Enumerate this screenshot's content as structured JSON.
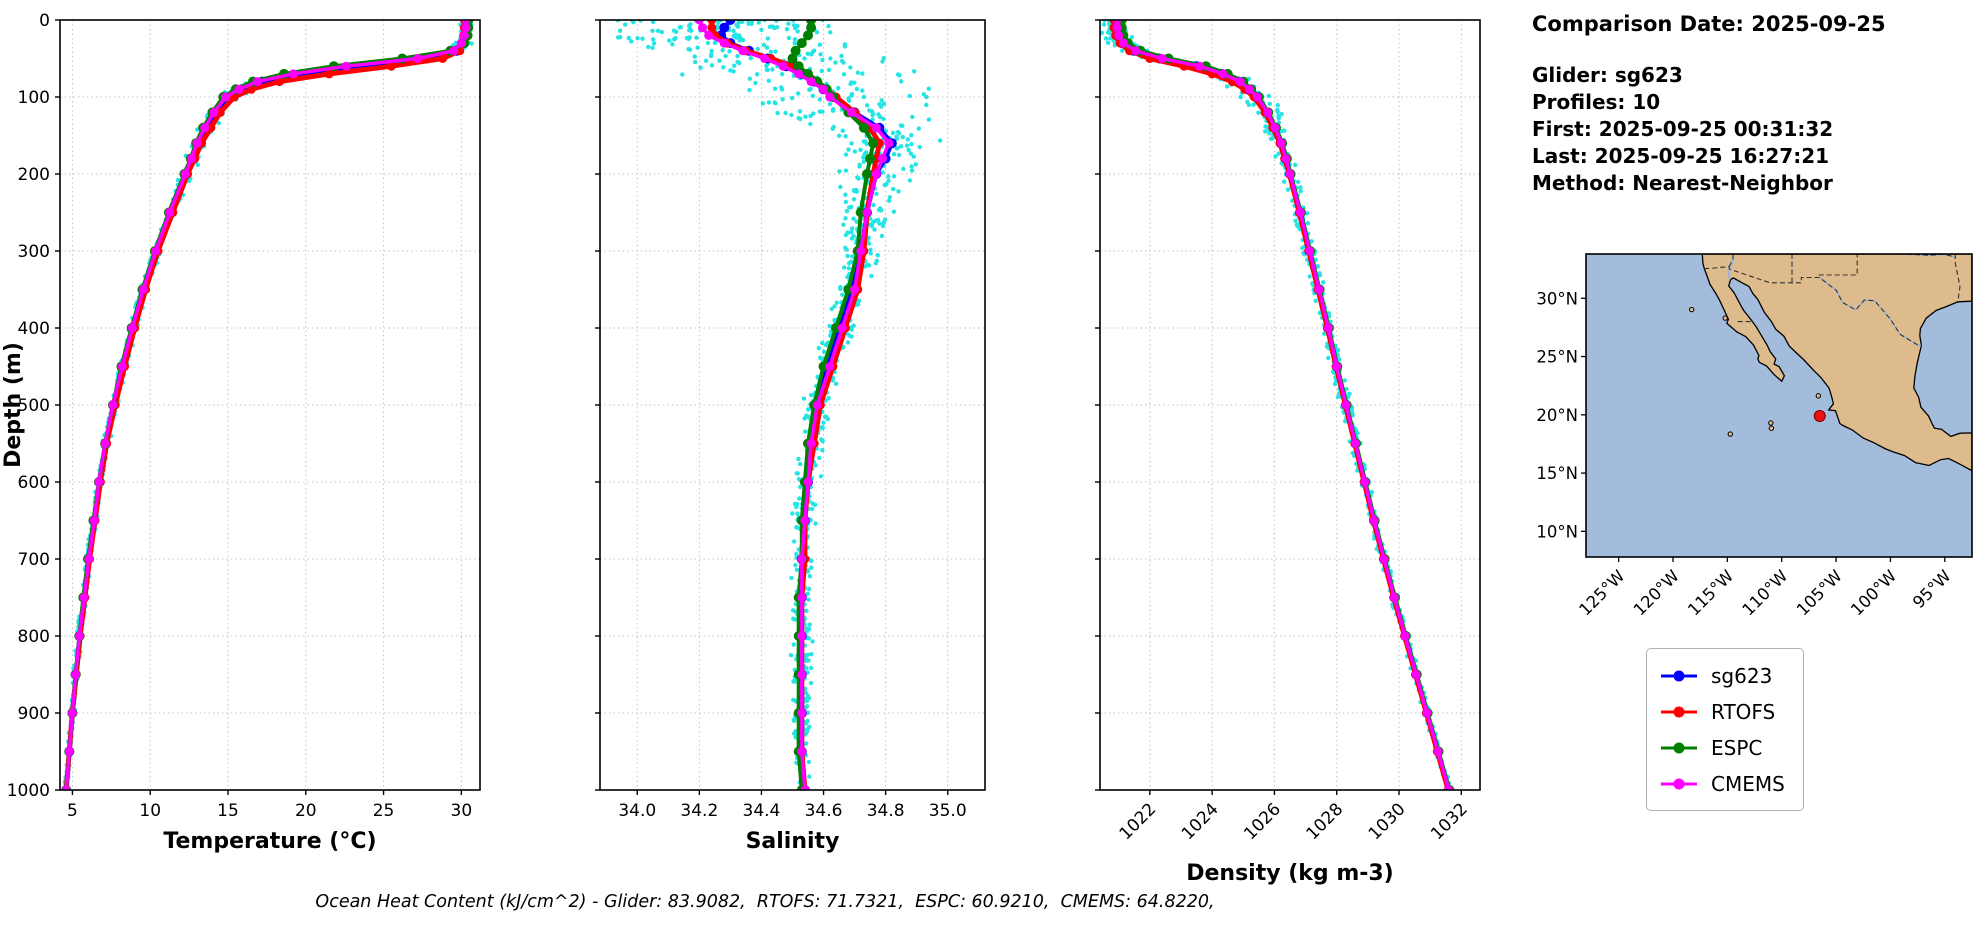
{
  "info_panel": {
    "title": "Comparison Date: 2025-09-25",
    "lines": [
      "Glider: sg623",
      "Profiles: 10",
      "First: 2025-09-25 00:31:32",
      "Last: 2025-09-25 16:27:21",
      "Method: Nearest-Neighbor"
    ]
  },
  "legend": {
    "items": [
      {
        "label": "sg623",
        "color": "#0000ff"
      },
      {
        "label": "RTOFS",
        "color": "#ff0000"
      },
      {
        "label": "ESPC",
        "color": "#008000"
      },
      {
        "label": "CMEMS",
        "color": "#ff00ff"
      }
    ]
  },
  "caption": "Ocean Heat Content (kJ/cm^2) - Glider: 83.9082,  RTOFS: 71.7321,  ESPC: 60.9210,  CMEMS: 64.8220,",
  "ocean_heat_content": {
    "glider": 83.9082,
    "rtofs": 71.7321,
    "espc": 60.921,
    "cmems": 64.822
  },
  "map": {
    "extent_lon": [
      -128,
      -92.5
    ],
    "extent_lat": [
      7.8,
      33.8
    ],
    "lon_tick_values": [
      -125,
      -120,
      -115,
      -110,
      -105,
      -100,
      -95
    ],
    "lon_tick_labels": [
      "125°W",
      "120°W",
      "115°W",
      "110°W",
      "105°W",
      "100°W",
      "95°W"
    ],
    "lat_tick_values": [
      30,
      25,
      20,
      15,
      10
    ],
    "lat_tick_labels": [
      "30°N",
      "25°N",
      "20°N",
      "15°N",
      "10°N"
    ],
    "glider_marker": {
      "lon": -106.5,
      "lat": 19.9,
      "color": "#ee1111"
    },
    "colors": {
      "ocean": "#a4bcdc",
      "land": "#ddbb8c",
      "coastline": "#000000",
      "river": "#8fb4e3",
      "border": "#333333"
    }
  },
  "chart_data": [
    {
      "type": "line",
      "id": "temperature",
      "xlabel": "Temperature (°C)",
      "ylabel": "Depth (m)",
      "xlim": [
        4.2,
        31.2
      ],
      "xticks": [
        5,
        10,
        15,
        20,
        25,
        30
      ],
      "xtick_labels": [
        "5",
        "10",
        "15",
        "20",
        "25",
        "30"
      ],
      "rotate_xtick_labels": false,
      "ylim": [
        1000,
        0
      ],
      "yticks": [
        0,
        100,
        200,
        300,
        400,
        500,
        600,
        700,
        800,
        900,
        1000
      ],
      "show_ytick_labels": true,
      "grid": true,
      "depths": [
        0,
        10,
        20,
        30,
        40,
        50,
        60,
        70,
        80,
        90,
        100,
        120,
        140,
        160,
        180,
        200,
        250,
        300,
        350,
        400,
        450,
        500,
        550,
        600,
        650,
        700,
        750,
        800,
        850,
        900,
        950,
        1000
      ],
      "series": [
        {
          "name": "sg623",
          "color": "#0000ff",
          "line_width": 4,
          "marker_radius": 5,
          "values": [
            30.3,
            30.3,
            30.25,
            30.1,
            29.7,
            27.8,
            23.5,
            19.8,
            17.2,
            15.9,
            15.0,
            14.2,
            13.6,
            13.1,
            12.7,
            12.3,
            11.3,
            10.4,
            9.6,
            8.9,
            8.25,
            7.65,
            7.15,
            6.75,
            6.4,
            6.05,
            5.75,
            5.45,
            5.2,
            5.0,
            4.8,
            4.6
          ]
        },
        {
          "name": "RTOFS",
          "color": "#ff0000",
          "line_width": 5,
          "marker_radius": 4.5,
          "values": [
            30.2,
            30.2,
            30.15,
            30.05,
            29.9,
            28.8,
            25.5,
            21.5,
            18.3,
            16.5,
            15.4,
            14.5,
            13.9,
            13.3,
            12.85,
            12.4,
            11.45,
            10.5,
            9.7,
            9.0,
            8.35,
            7.75,
            7.2,
            6.8,
            6.45,
            6.1,
            5.8,
            5.5,
            5.25,
            5.0,
            4.8,
            4.6
          ]
        },
        {
          "name": "ESPC",
          "color": "#008000",
          "line_width": 4,
          "marker_radius": 5,
          "values": [
            30.45,
            30.45,
            30.4,
            30.2,
            29.3,
            26.2,
            21.8,
            18.6,
            16.6,
            15.5,
            14.7,
            14.0,
            13.4,
            12.95,
            12.6,
            12.2,
            11.2,
            10.3,
            9.5,
            8.8,
            8.15,
            7.6,
            7.1,
            6.7,
            6.35,
            6.0,
            5.7,
            5.45,
            5.2,
            5.0,
            4.8,
            4.6
          ]
        },
        {
          "name": "CMEMS",
          "color": "#ff00ff",
          "line_width": 3.5,
          "marker_radius": 4.5,
          "values": [
            30.3,
            30.3,
            30.2,
            30.0,
            29.5,
            27.2,
            22.6,
            19.2,
            16.9,
            15.7,
            14.85,
            14.1,
            13.5,
            13.0,
            12.65,
            12.25,
            11.25,
            10.35,
            9.55,
            8.85,
            8.2,
            7.6,
            7.1,
            6.7,
            6.4,
            6.05,
            5.75,
            5.45,
            5.2,
            5.0,
            4.8,
            4.6
          ]
        }
      ],
      "raw_scatter": {
        "name": "glider-raw-observations",
        "color": "#00e0e0",
        "n": 650,
        "depth_bias": 1.35,
        "seed": 7,
        "spread_profile": [
          [
            0,
            0.25
          ],
          [
            50,
            0.8
          ],
          [
            120,
            0.6
          ],
          [
            250,
            0.25
          ],
          [
            1000,
            0.12
          ]
        ]
      }
    },
    {
      "type": "line",
      "id": "salinity",
      "xlabel": "Salinity",
      "ylabel": "",
      "xlim": [
        33.88,
        35.12
      ],
      "xticks": [
        34.0,
        34.2,
        34.4,
        34.6,
        34.8,
        35.0
      ],
      "xtick_labels": [
        "34.0",
        "34.2",
        "34.4",
        "34.6",
        "34.8",
        "35.0"
      ],
      "rotate_xtick_labels": false,
      "ylim": [
        1000,
        0
      ],
      "yticks": [
        0,
        100,
        200,
        300,
        400,
        500,
        600,
        700,
        800,
        900,
        1000
      ],
      "show_ytick_labels": false,
      "grid": true,
      "depths": [
        0,
        10,
        20,
        30,
        40,
        50,
        60,
        70,
        80,
        90,
        100,
        120,
        140,
        160,
        180,
        200,
        250,
        300,
        350,
        400,
        450,
        500,
        550,
        600,
        650,
        700,
        750,
        800,
        850,
        900,
        950,
        1000
      ],
      "series": [
        {
          "name": "sg623",
          "color": "#0000ff",
          "line_width": 4,
          "marker_radius": 5,
          "values": [
            34.3,
            34.28,
            34.27,
            34.3,
            34.36,
            34.42,
            34.48,
            34.53,
            34.57,
            34.6,
            34.63,
            34.7,
            34.78,
            34.82,
            34.8,
            34.77,
            34.74,
            34.72,
            34.69,
            34.65,
            34.61,
            34.58,
            34.56,
            34.55,
            34.54,
            34.53,
            34.53,
            34.53,
            34.53,
            34.53,
            34.53,
            34.54
          ]
        },
        {
          "name": "RTOFS",
          "color": "#ff0000",
          "line_width": 5,
          "marker_radius": 4.5,
          "values": [
            34.24,
            34.24,
            34.25,
            34.29,
            34.35,
            34.43,
            34.5,
            34.55,
            34.58,
            34.61,
            34.64,
            34.7,
            34.75,
            34.78,
            34.77,
            34.76,
            34.74,
            34.73,
            34.71,
            34.67,
            34.63,
            34.59,
            34.57,
            34.55,
            34.54,
            34.54,
            34.53,
            34.53,
            34.53,
            34.53,
            34.53,
            34.54
          ]
        },
        {
          "name": "ESPC",
          "color": "#008000",
          "line_width": 4,
          "marker_radius": 5,
          "values": [
            34.56,
            34.56,
            34.55,
            34.53,
            34.51,
            34.5,
            34.52,
            34.55,
            34.58,
            34.61,
            34.63,
            34.68,
            34.73,
            34.76,
            34.75,
            34.74,
            34.72,
            34.71,
            34.68,
            34.64,
            34.6,
            34.57,
            34.55,
            34.54,
            34.53,
            34.53,
            34.52,
            34.52,
            34.52,
            34.52,
            34.52,
            34.53
          ]
        },
        {
          "name": "CMEMS",
          "color": "#ff00ff",
          "line_width": 3.5,
          "marker_radius": 4.5,
          "values": [
            34.2,
            34.21,
            34.23,
            34.28,
            34.34,
            34.41,
            34.47,
            34.52,
            34.56,
            34.6,
            34.62,
            34.69,
            34.77,
            34.81,
            34.79,
            34.77,
            34.74,
            34.72,
            34.7,
            34.66,
            34.62,
            34.58,
            34.56,
            34.55,
            34.54,
            34.53,
            34.53,
            34.53,
            34.53,
            34.53,
            34.53,
            34.54
          ]
        }
      ],
      "raw_scatter": {
        "name": "glider-raw-observations",
        "color": "#00e0e0",
        "n": 950,
        "depth_bias": 1.55,
        "seed": 11,
        "spread_profile": [
          [
            0,
            0.3
          ],
          [
            40,
            0.35
          ],
          [
            100,
            0.28
          ],
          [
            160,
            0.13
          ],
          [
            300,
            0.05
          ],
          [
            1000,
            0.02
          ]
        ]
      }
    },
    {
      "type": "line",
      "id": "density",
      "xlabel": "Density (kg m-3)",
      "ylabel": "",
      "xlim": [
        1020.4,
        1032.6
      ],
      "xticks": [
        1022,
        1024,
        1026,
        1028,
        1030,
        1032
      ],
      "xtick_labels": [
        "1022",
        "1024",
        "1026",
        "1028",
        "1030",
        "1032"
      ],
      "rotate_xtick_labels": true,
      "ylim": [
        1000,
        0
      ],
      "yticks": [
        0,
        100,
        200,
        300,
        400,
        500,
        600,
        700,
        800,
        900,
        1000
      ],
      "show_ytick_labels": false,
      "grid": true,
      "depths": [
        0,
        10,
        20,
        30,
        40,
        50,
        60,
        70,
        80,
        90,
        100,
        120,
        140,
        160,
        180,
        200,
        250,
        300,
        350,
        400,
        450,
        500,
        550,
        600,
        650,
        700,
        750,
        800,
        850,
        900,
        950,
        1000
      ],
      "series": [
        {
          "name": "sg623",
          "color": "#0000ff",
          "line_width": 4,
          "marker_radius": 5,
          "values": [
            1020.9,
            1020.9,
            1020.95,
            1021.1,
            1021.5,
            1022.3,
            1023.5,
            1024.3,
            1024.85,
            1025.15,
            1025.4,
            1025.75,
            1026.0,
            1026.2,
            1026.35,
            1026.5,
            1026.82,
            1027.12,
            1027.42,
            1027.72,
            1028.0,
            1028.3,
            1028.6,
            1028.9,
            1029.2,
            1029.52,
            1029.85,
            1030.2,
            1030.55,
            1030.9,
            1031.25,
            1031.6
          ]
        },
        {
          "name": "RTOFS",
          "color": "#ff0000",
          "line_width": 5,
          "marker_radius": 4.5,
          "values": [
            1020.85,
            1020.85,
            1020.9,
            1021.05,
            1021.35,
            1022.0,
            1023.1,
            1024.0,
            1024.65,
            1025.05,
            1025.35,
            1025.7,
            1025.95,
            1026.18,
            1026.33,
            1026.48,
            1026.8,
            1027.1,
            1027.4,
            1027.7,
            1027.98,
            1028.28,
            1028.58,
            1028.88,
            1029.18,
            1029.5,
            1029.83,
            1030.18,
            1030.53,
            1030.88,
            1031.23,
            1031.58
          ]
        },
        {
          "name": "ESPC",
          "color": "#008000",
          "line_width": 4,
          "marker_radius": 5,
          "values": [
            1021.1,
            1021.1,
            1021.15,
            1021.3,
            1021.7,
            1022.6,
            1023.8,
            1024.5,
            1025.0,
            1025.25,
            1025.5,
            1025.8,
            1026.05,
            1026.25,
            1026.4,
            1026.52,
            1026.85,
            1027.15,
            1027.45,
            1027.75,
            1028.02,
            1028.32,
            1028.62,
            1028.92,
            1029.22,
            1029.54,
            1029.87,
            1030.22,
            1030.57,
            1030.92,
            1031.27,
            1031.62
          ]
        },
        {
          "name": "CMEMS",
          "color": "#ff00ff",
          "line_width": 3.5,
          "marker_radius": 4.5,
          "values": [
            1020.95,
            1020.95,
            1021.0,
            1021.15,
            1021.55,
            1022.4,
            1023.6,
            1024.35,
            1024.9,
            1025.2,
            1025.45,
            1025.78,
            1026.02,
            1026.22,
            1026.37,
            1026.5,
            1026.83,
            1027.13,
            1027.43,
            1027.73,
            1028.0,
            1028.3,
            1028.6,
            1028.9,
            1029.2,
            1029.52,
            1029.85,
            1030.2,
            1030.55,
            1030.9,
            1031.25,
            1031.6
          ]
        }
      ],
      "raw_scatter": {
        "name": "glider-raw-observations",
        "color": "#00e0e0",
        "n": 650,
        "depth_bias": 1.35,
        "seed": 13,
        "spread_profile": [
          [
            0,
            0.35
          ],
          [
            80,
            0.5
          ],
          [
            200,
            0.22
          ],
          [
            1000,
            0.07
          ]
        ]
      }
    }
  ]
}
